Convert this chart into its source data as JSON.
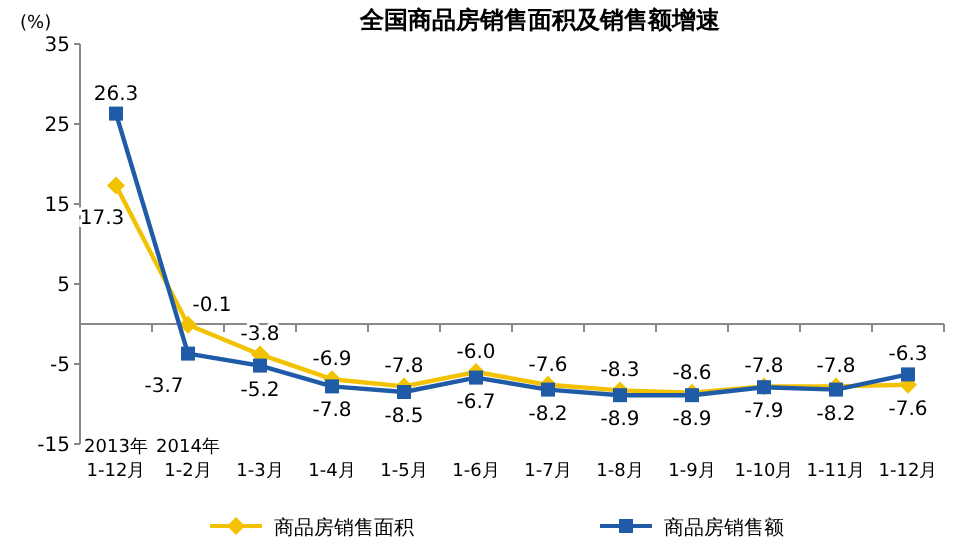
{
  "chart_data": {
    "type": "line",
    "title": "全国商品房销售面积及销售额增速",
    "ylabel": "(%)",
    "categories": [
      "2013年\n1-12月",
      "2014年\n1-2月",
      "1-3月",
      "1-4月",
      "1-5月",
      "1-6月",
      "1-7月",
      "1-8月",
      "1-9月",
      "1-10月",
      "1-11月",
      "1-12月"
    ],
    "series": [
      {
        "name": "商品房销售面积",
        "color": "#f2c200",
        "marker": "diamond",
        "values": [
          17.3,
          -0.1,
          -3.8,
          -6.9,
          -7.8,
          -6.0,
          -7.6,
          -8.3,
          -8.6,
          -7.8,
          -7.8,
          -7.6
        ],
        "value_labels": [
          "17.3",
          "-0.1",
          "-3.8",
          "-6.9",
          "-7.8",
          "-6.0",
          "-7.6",
          "-8.3",
          "-8.6",
          "-7.8",
          "-7.8",
          "-7.6"
        ]
      },
      {
        "name": "商品房销售额",
        "color": "#1f5ba6",
        "marker": "square",
        "values": [
          26.3,
          -3.7,
          -5.2,
          -7.8,
          -8.5,
          -6.7,
          -8.2,
          -8.9,
          -8.9,
          -7.9,
          -8.2,
          -6.3
        ],
        "value_labels": [
          "26.3",
          "-3.7",
          "-5.2",
          "-7.8",
          "-8.5",
          "-6.7",
          "-8.2",
          "-8.9",
          "-8.9",
          "-7.9",
          "-8.2",
          "-6.3"
        ]
      }
    ],
    "ylim": [
      -15,
      35
    ],
    "yticks": [
      -15,
      -5,
      5,
      15,
      25,
      35
    ],
    "grid": false,
    "legend": "bottom"
  }
}
